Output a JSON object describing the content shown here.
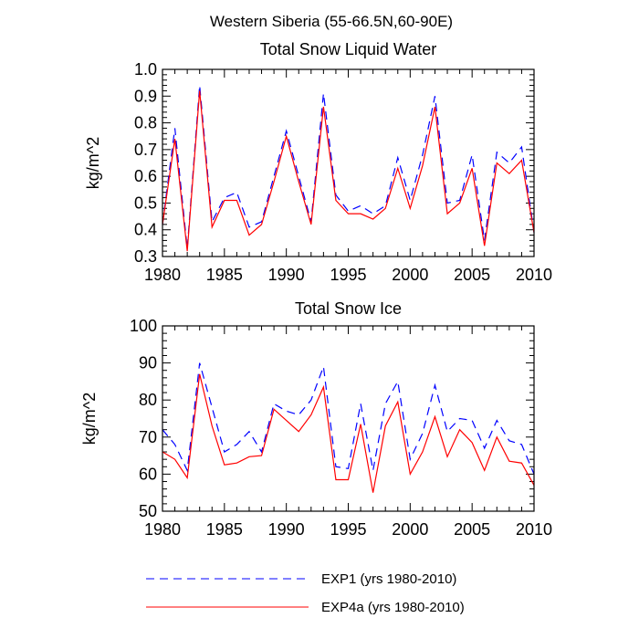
{
  "figure": {
    "suptitle": "Western Siberia (55-66.5N,60-90E)"
  },
  "chart_data": [
    {
      "type": "line",
      "title": "Total Snow Liquid Water",
      "xlabel": "",
      "ylabel": "kg/m^2",
      "xlim": [
        1980,
        2010
      ],
      "ylim": [
        0.3,
        1.0
      ],
      "xticks": [
        1980,
        1985,
        1990,
        1995,
        2000,
        2005,
        2010
      ],
      "yticks": [
        0.3,
        0.4,
        0.5,
        0.6,
        0.7,
        0.8,
        0.9,
        1.0
      ],
      "ytick_labels": [
        "0.3",
        "0.4",
        "0.5",
        "0.6",
        "0.7",
        "0.8",
        "0.9",
        "1.0"
      ],
      "x": [
        1980,
        1981,
        1982,
        1983,
        1984,
        1985,
        1986,
        1987,
        1988,
        1989,
        1990,
        1991,
        1992,
        1993,
        1994,
        1995,
        1996,
        1997,
        1998,
        1999,
        2000,
        2001,
        2002,
        2003,
        2004,
        2005,
        2006,
        2007,
        2008,
        2009,
        2010
      ],
      "series": [
        {
          "name": "EXP1 (yrs 1980-2010)",
          "color": "#0000ff",
          "style": "dashed",
          "values": [
            0.42,
            0.78,
            0.33,
            0.94,
            0.43,
            0.52,
            0.54,
            0.41,
            0.43,
            0.6,
            0.77,
            0.6,
            0.43,
            0.91,
            0.53,
            0.47,
            0.49,
            0.46,
            0.49,
            0.67,
            0.51,
            0.68,
            0.9,
            0.5,
            0.51,
            0.68,
            0.36,
            0.69,
            0.65,
            0.71,
            0.39
          ]
        },
        {
          "name": "EXP4a (yrs 1980-2010)",
          "color": "#ff0000",
          "style": "solid",
          "values": [
            0.42,
            0.74,
            0.32,
            0.92,
            0.41,
            0.51,
            0.51,
            0.38,
            0.42,
            0.58,
            0.75,
            0.58,
            0.42,
            0.86,
            0.51,
            0.46,
            0.46,
            0.44,
            0.48,
            0.63,
            0.48,
            0.64,
            0.86,
            0.46,
            0.5,
            0.63,
            0.34,
            0.65,
            0.61,
            0.66,
            0.39
          ]
        }
      ]
    },
    {
      "type": "line",
      "title": "Total Snow Ice",
      "xlabel": "",
      "ylabel": "kg/m^2",
      "xlim": [
        1980,
        2010
      ],
      "ylim": [
        50,
        100
      ],
      "xticks": [
        1980,
        1985,
        1990,
        1995,
        2000,
        2005,
        2010
      ],
      "yticks": [
        50,
        60,
        70,
        80,
        90,
        100
      ],
      "ytick_labels": [
        "50",
        "60",
        "70",
        "80",
        "90",
        "100"
      ],
      "x": [
        1980,
        1981,
        1982,
        1983,
        1984,
        1985,
        1986,
        1987,
        1988,
        1989,
        1990,
        1991,
        1992,
        1993,
        1994,
        1995,
        1996,
        1997,
        1998,
        1999,
        2000,
        2001,
        2002,
        2003,
        2004,
        2005,
        2006,
        2007,
        2008,
        2009,
        2010
      ],
      "series": [
        {
          "name": "EXP1 (yrs 1980-2010)",
          "color": "#0000ff",
          "style": "dashed",
          "values": [
            72,
            68,
            61,
            90,
            78,
            66,
            68,
            71.5,
            66,
            79,
            77,
            76,
            80,
            89,
            62,
            61.5,
            79,
            61,
            79,
            85,
            64,
            71,
            84,
            71.5,
            75,
            74.5,
            67,
            74.5,
            69,
            68,
            60
          ]
        },
        {
          "name": "EXP4a (yrs 1980-2010)",
          "color": "#ff0000",
          "style": "solid",
          "values": [
            66,
            64,
            59,
            87,
            73,
            62.5,
            63,
            64.7,
            65,
            77.5,
            74.5,
            71.5,
            76,
            83.5,
            58.5,
            58.5,
            73.5,
            55,
            73,
            79.5,
            60,
            66,
            75.5,
            64.7,
            72,
            68.5,
            61,
            70,
            63.5,
            63,
            57
          ]
        }
      ]
    }
  ],
  "legend": {
    "placement": "bottom-left",
    "entries": [
      {
        "label": "EXP1 (yrs 1980-2010)",
        "color": "#0000ff",
        "style": "dashed"
      },
      {
        "label": "EXP4a (yrs 1980-2010)",
        "color": "#ff0000",
        "style": "solid"
      }
    ]
  }
}
